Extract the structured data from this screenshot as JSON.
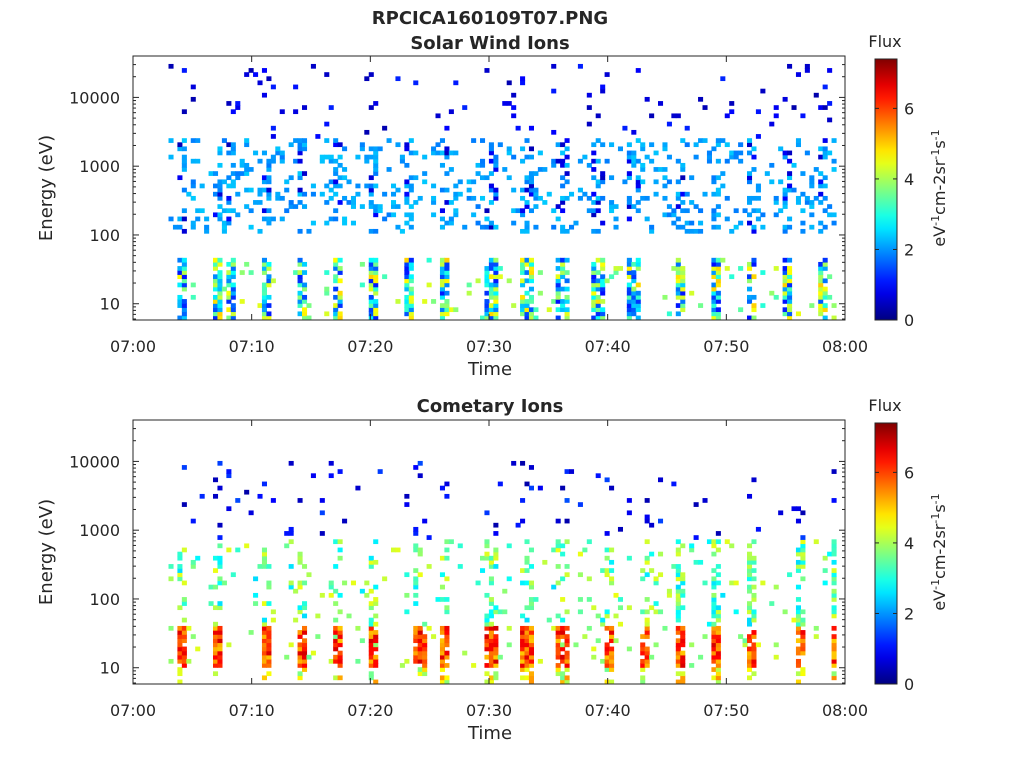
{
  "figure_title": "RPCICA160109T07.PNG",
  "chart_data": [
    {
      "type": "heatmap",
      "title": "Solar Wind Ions",
      "xlabel": "Time",
      "ylabel": "Energy (eV)",
      "x_ticks": [
        "07:00",
        "07:10",
        "07:20",
        "07:30",
        "07:40",
        "07:50",
        "08:00"
      ],
      "x_range": [
        "07:00",
        "08:00"
      ],
      "y_scale": "log",
      "y_ticks": [
        10,
        100,
        1000,
        10000
      ],
      "y_tick_labels": [
        "10",
        "100",
        "1000",
        "10000"
      ],
      "ylim": [
        5.8,
        40000
      ],
      "colorbar": {
        "label": "Flux",
        "unit": "eV-1cm-2sr-1s-1",
        "range": [
          0,
          7.4
        ],
        "ticks": [
          "0",
          "2",
          "4",
          "6"
        ],
        "colormap": "jet"
      },
      "grid": false,
      "data_start": "07:03",
      "data_end": "07:59",
      "sweep_times": [
        "07:04",
        "07:07",
        "07:08",
        "07:11",
        "07:14",
        "07:17",
        "07:20",
        "07:23",
        "07:26",
        "07:30",
        "07:33",
        "07:36",
        "07:39",
        "07:42",
        "07:46",
        "07:49",
        "07:52",
        "07:55",
        "07:58"
      ],
      "low_energy_band_eV": [
        6,
        45
      ],
      "low_energy_flux": [
        1.0,
        5.0
      ],
      "scatter_band_eV": [
        100,
        2500
      ],
      "scatter_flux": [
        1.8,
        2.4
      ],
      "sparse_band_eV": [
        2500,
        30000
      ],
      "sparse_flux": [
        0.3,
        1.2
      ]
    },
    {
      "type": "heatmap",
      "title": "Cometary Ions",
      "xlabel": "Time",
      "ylabel": "Energy (eV)",
      "x_ticks": [
        "07:00",
        "07:10",
        "07:20",
        "07:30",
        "07:40",
        "07:50",
        "08:00"
      ],
      "x_range": [
        "07:00",
        "08:00"
      ],
      "y_scale": "log",
      "y_ticks": [
        10,
        100,
        1000,
        10000
      ],
      "y_tick_labels": [
        "10",
        "100",
        "1000",
        "10000"
      ],
      "ylim": [
        5.8,
        40000
      ],
      "colorbar": {
        "label": "Flux",
        "unit": "eV-1cm-2sr-1s-1",
        "range": [
          0,
          7.4
        ],
        "ticks": [
          "0",
          "2",
          "4",
          "6"
        ],
        "colormap": "jet"
      },
      "grid": false,
      "data_start": "07:03",
      "data_end": "07:59",
      "sweep_times": [
        "07:04",
        "07:07",
        "07:11",
        "07:14",
        "07:17",
        "07:20",
        "07:24",
        "07:26",
        "07:30",
        "07:33",
        "07:36",
        "07:40",
        "07:43",
        "07:46",
        "07:49",
        "07:52",
        "07:56",
        "07:59"
      ],
      "peak_band_eV": [
        10,
        40
      ],
      "peak_flux": [
        5.0,
        6.8
      ],
      "wing_band_eV": [
        40,
        700
      ],
      "wing_flux": [
        2.5,
        4.5
      ],
      "sparse_band_eV": [
        700,
        10000
      ],
      "sparse_flux": [
        0.3,
        1.5
      ]
    }
  ]
}
